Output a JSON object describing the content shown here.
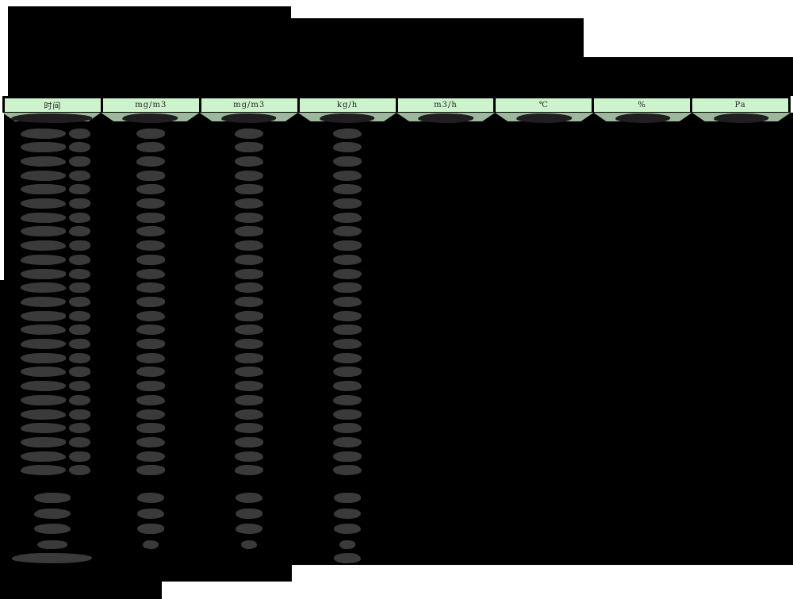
{
  "header": {
    "columns": [
      {
        "label": "时间"
      },
      {
        "label": "mg/m3"
      },
      {
        "label": "mg/m3"
      },
      {
        "label": "kg/h"
      },
      {
        "label": "m3/h"
      },
      {
        "label": "℃"
      },
      {
        "label": "%"
      },
      {
        "label": "Pa"
      }
    ]
  },
  "colors": {
    "page_bg": "#ffffff",
    "ink": "#000000",
    "header_bg": "#cdf3cd",
    "header_text": "#222222",
    "band_bg": "#9db99d",
    "band_blob": "#1f1f1f",
    "blob": "#3a3a3a"
  },
  "table": {
    "regular_row_count": 25,
    "summary_row_count": 4,
    "has_footer_row": true,
    "redacted_value_columns_per_regular_row": 4,
    "all_values_redacted": true
  }
}
